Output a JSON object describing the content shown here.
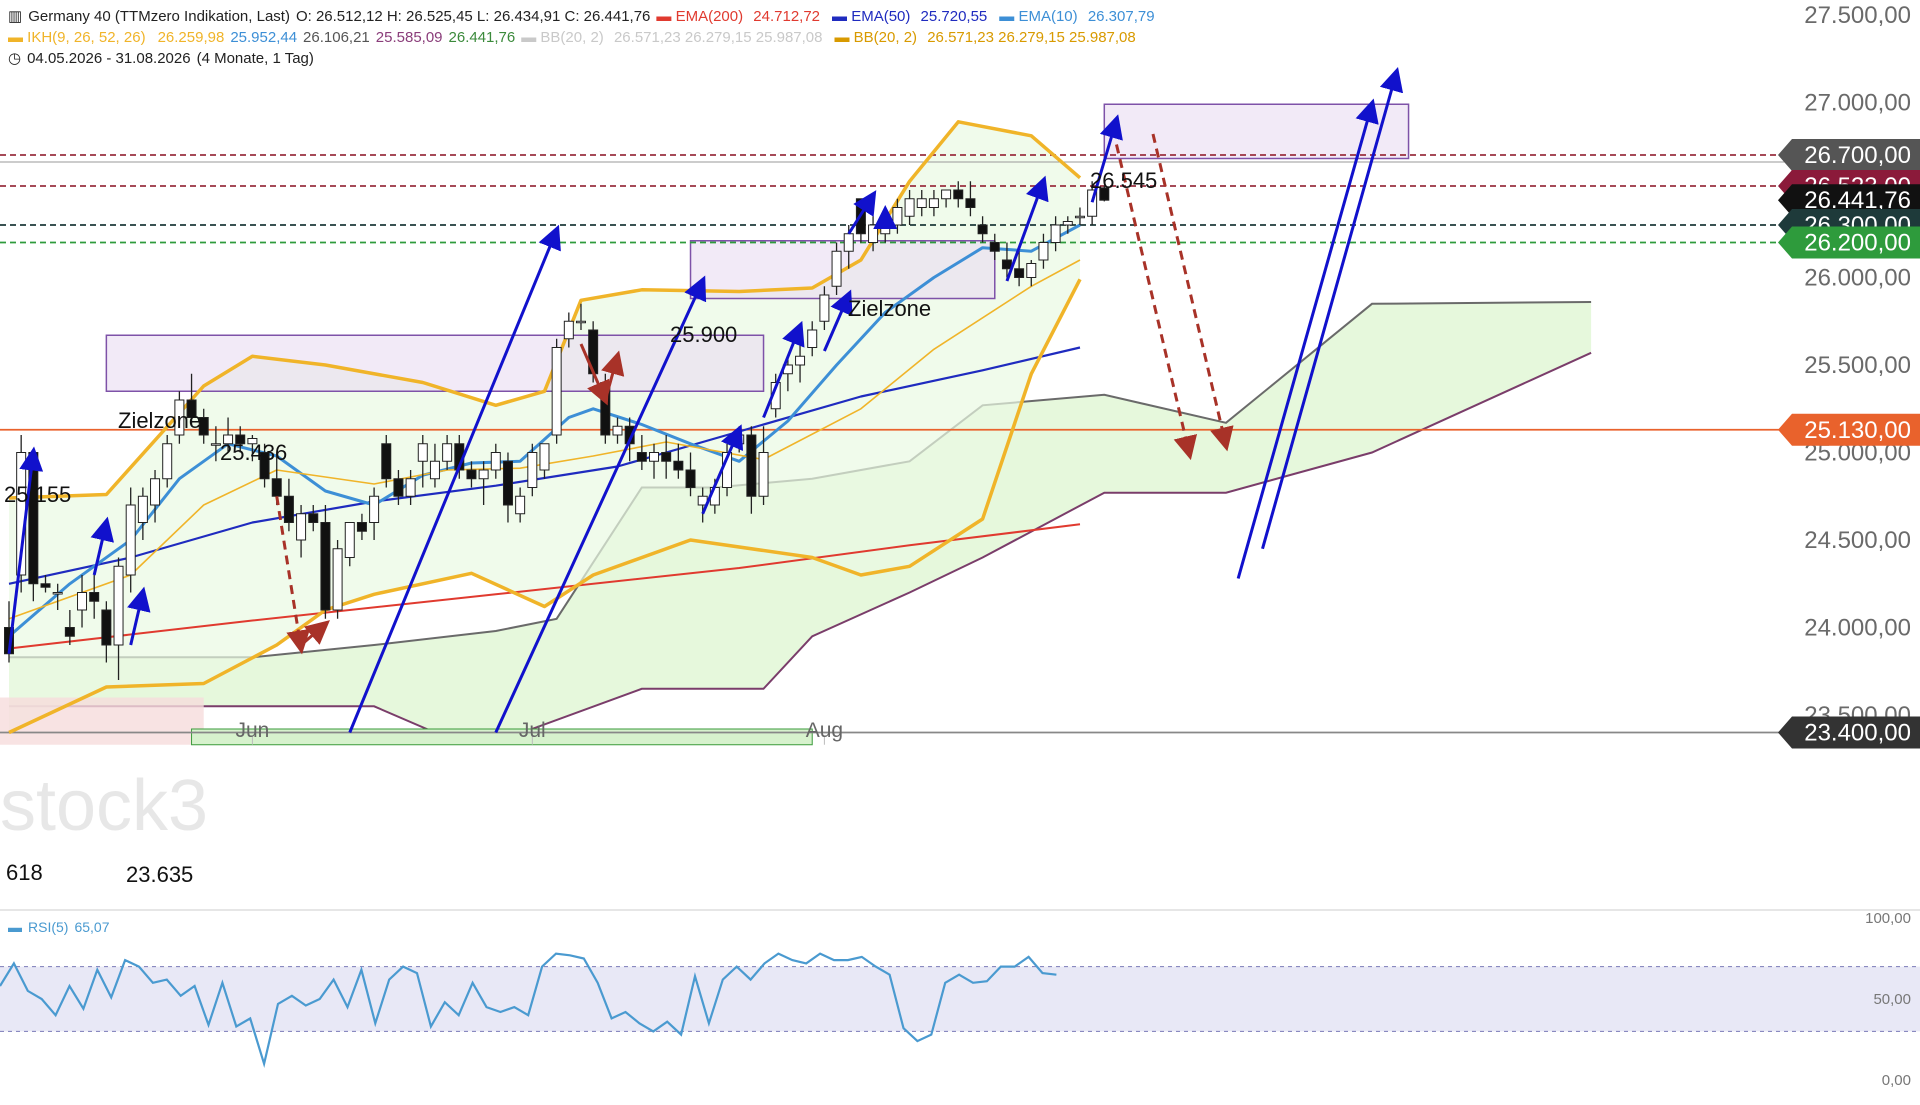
{
  "header": {
    "line1": {
      "symbol": "Germany 40 (TTMzero Indikation, Last)",
      "ohlc": "O: 26.512,12  H: 26.525,45  L: 26.434,91  C: 26.441,76",
      "ema200_label": "EMA(200)",
      "ema200_value": "24.712,72",
      "ema50_label": "EMA(50)",
      "ema50_value": "25.720,55",
      "ema10_label": "EMA(10)",
      "ema10_value": "26.307,79"
    },
    "line2": {
      "ikh_label": "IKH(9, 26, 52, 26)",
      "ikh_values": [
        "26.259,98",
        "25.952,44",
        "26.106,21",
        "25.585,09",
        "26.441,76"
      ],
      "bb_dim_label": "BB(20, 2)",
      "bb_dim_values": "26.571,23  26.279,15  25.987,08",
      "bb_label": "BB(20, 2)",
      "bb_values": "26.571,23  26.279,15  25.987,08"
    },
    "line3": {
      "range": "04.05.2026 - 31.08.2026",
      "period": "(4 Monate, 1 Tag)"
    }
  },
  "colors": {
    "ema200": "#e03a2f",
    "ema50": "#1f2bbf",
    "ema10": "#3d8fd6",
    "ikh": "#f0b429",
    "bb": "#f0b429",
    "cloud_fill": "#e6f8dc",
    "zone_fill": "#eadcf2",
    "zone_border": "#7e52a8",
    "arrow_blue": "#1111cc",
    "arrow_red": "#a83228",
    "rsi": "#4a9ad0"
  },
  "watermark": "stock3",
  "rsi": {
    "label": "RSI(5)",
    "value": "65,07"
  },
  "annotations": {
    "zone1": "Zielzone",
    "zone2": "Zielzone",
    "p25155": "25.155",
    "p25436": "25.436",
    "p25900": "25.900",
    "p26545": "26.545",
    "p23635": "23.635",
    "p618": "618"
  },
  "chart_data": {
    "type": "candlestick",
    "title": "Germany 40 (TTMzero Indikation, Last)",
    "period": "04.05.2026 - 31.08.2026",
    "x_ticks": [
      "Jun",
      "Jul",
      "Aug"
    ],
    "y_ticks": [
      "27.500,00",
      "27.000,00",
      "26.000,00",
      "25.500,00",
      "25.000,00",
      "24.500,00",
      "24.000,00",
      "23.500,00"
    ],
    "y_range": [
      23330,
      27600
    ],
    "price_labels": [
      {
        "label": "26.700,00",
        "value": 26700,
        "color": "#555555"
      },
      {
        "label": "26.523,00",
        "value": 26523,
        "color": "#8b1a3a"
      },
      {
        "label": "26.441,76",
        "value": 26441.76,
        "color": "#111111"
      },
      {
        "label": "26.300,00",
        "value": 26300,
        "color": "#1e3a3a"
      },
      {
        "label": "26.200,00",
        "value": 26200,
        "color": "#2e9b3c"
      },
      {
        "label": "25.130,00",
        "value": 25130,
        "color": "#e9622c"
      },
      {
        "label": "23.400,00",
        "value": 23400,
        "color": "#333333"
      }
    ],
    "candles": [
      [
        24000,
        24150,
        23800,
        23850
      ],
      [
        24300,
        25100,
        24200,
        25000
      ],
      [
        25000,
        25000,
        24150,
        24250
      ],
      [
        24250,
        24300,
        24200,
        24230
      ],
      [
        24200,
        24250,
        24100,
        24200
      ],
      [
        24000,
        24100,
        23900,
        23950
      ],
      [
        24100,
        24300,
        24000,
        24200
      ],
      [
        24200,
        24300,
        24050,
        24150
      ],
      [
        24100,
        24150,
        23800,
        23900
      ],
      [
        23900,
        24400,
        23700,
        24350
      ],
      [
        24300,
        24800,
        24200,
        24700
      ],
      [
        24600,
        24800,
        24500,
        24750
      ],
      [
        24700,
        24900,
        24600,
        24850
      ],
      [
        24850,
        25100,
        24800,
        25050
      ],
      [
        25100,
        25350,
        25050,
        25300
      ],
      [
        25300,
        25450,
        25150,
        25200
      ],
      [
        25200,
        25250,
        25050,
        25100
      ],
      [
        25050,
        25150,
        24950,
        25050
      ],
      [
        25050,
        25200,
        25000,
        25100
      ],
      [
        25100,
        25150,
        25000,
        25050
      ],
      [
        25050,
        25100,
        24950,
        25080
      ],
      [
        25000,
        25050,
        24800,
        24850
      ],
      [
        24850,
        25000,
        24700,
        24750
      ],
      [
        24750,
        24850,
        24550,
        24600
      ],
      [
        24500,
        24700,
        24400,
        24650
      ],
      [
        24650,
        24700,
        24550,
        24600
      ],
      [
        24600,
        24700,
        24050,
        24100
      ],
      [
        24100,
        24500,
        24050,
        24450
      ],
      [
        24400,
        24600,
        24350,
        24600
      ],
      [
        24600,
        24650,
        24500,
        24550
      ],
      [
        24600,
        24800,
        24500,
        24750
      ],
      [
        25050,
        25100,
        24800,
        24850
      ],
      [
        24850,
        24900,
        24700,
        24750
      ],
      [
        24750,
        24900,
        24700,
        24850
      ],
      [
        24950,
        25100,
        24800,
        25050
      ],
      [
        24850,
        25050,
        24800,
        24950
      ],
      [
        24950,
        25100,
        24900,
        25050
      ],
      [
        25050,
        25100,
        24850,
        24900
      ],
      [
        24900,
        24950,
        24800,
        24850
      ],
      [
        24850,
        24950,
        24700,
        24900
      ],
      [
        24900,
        25050,
        24850,
        25000
      ],
      [
        24950,
        25000,
        24600,
        24700
      ],
      [
        24650,
        24800,
        24600,
        24750
      ],
      [
        24800,
        25050,
        24750,
        25000
      ],
      [
        24900,
        25050,
        24850,
        25050
      ],
      [
        25100,
        25650,
        25050,
        25600
      ],
      [
        25650,
        25800,
        25600,
        25750
      ],
      [
        25750,
        25850,
        25700,
        25750
      ],
      [
        25700,
        25750,
        25400,
        25450
      ],
      [
        25400,
        25450,
        25050,
        25100
      ],
      [
        25100,
        25200,
        25050,
        25150
      ],
      [
        25150,
        25200,
        24950,
        25050
      ],
      [
        25000,
        25100,
        24900,
        24950
      ],
      [
        24950,
        25050,
        24850,
        25000
      ],
      [
        25000,
        25100,
        24850,
        24950
      ],
      [
        24950,
        25050,
        24850,
        24900
      ],
      [
        24900,
        25000,
        24750,
        24800
      ],
      [
        24700,
        24800,
        24600,
        24750
      ],
      [
        24700,
        24850,
        24650,
        24800
      ],
      [
        24800,
        25050,
        24750,
        25000
      ],
      [
        25050,
        25150,
        25000,
        25100
      ],
      [
        25100,
        25150,
        24650,
        24750
      ],
      [
        24750,
        25150,
        24700,
        25000
      ],
      [
        25250,
        25450,
        25200,
        25400
      ],
      [
        25450,
        25550,
        25350,
        25500
      ],
      [
        25500,
        25650,
        25400,
        25550
      ],
      [
        25600,
        25750,
        25550,
        25700
      ],
      [
        25750,
        25950,
        25700,
        25900
      ],
      [
        25950,
        26200,
        25900,
        26150
      ],
      [
        26150,
        26300,
        26050,
        26250
      ],
      [
        26450,
        26450,
        26200,
        26250
      ],
      [
        26200,
        26350,
        26150,
        26300
      ],
      [
        26250,
        26400,
        26200,
        26350
      ],
      [
        26300,
        26450,
        26250,
        26400
      ],
      [
        26350,
        26500,
        26300,
        26450
      ],
      [
        26400,
        26500,
        26350,
        26450
      ],
      [
        26400,
        26500,
        26350,
        26450
      ],
      [
        26450,
        26500,
        26400,
        26500
      ],
      [
        26500,
        26550,
        26400,
        26450
      ],
      [
        26450,
        26550,
        26350,
        26400
      ],
      [
        26300,
        26350,
        26200,
        26250
      ],
      [
        26200,
        26250,
        26100,
        26150
      ],
      [
        26100,
        26200,
        26000,
        26050
      ],
      [
        26050,
        26150,
        25950,
        26000
      ],
      [
        26000,
        26100,
        25950,
        26080
      ],
      [
        26100,
        26250,
        26050,
        26200
      ],
      [
        26200,
        26350,
        26150,
        26300
      ],
      [
        26300,
        26350,
        26250,
        26320
      ],
      [
        26350,
        26400,
        26300,
        26350
      ],
      [
        26350,
        26550,
        26300,
        26500
      ],
      [
        26512.12,
        26525.45,
        26434.91,
        26441.76
      ]
    ],
    "series": [
      {
        "name": "EMA(200)",
        "values": [
          [
            0,
            23880
          ],
          [
            20,
            24040
          ],
          [
            40,
            24190
          ],
          [
            60,
            24340
          ],
          [
            74,
            24470
          ],
          [
            88,
            24590
          ]
        ]
      },
      {
        "name": "EMA(50)",
        "values": [
          [
            0,
            24250
          ],
          [
            10,
            24400
          ],
          [
            20,
            24600
          ],
          [
            30,
            24720
          ],
          [
            40,
            24810
          ],
          [
            50,
            24920
          ],
          [
            60,
            25120
          ],
          [
            70,
            25320
          ],
          [
            80,
            25470
          ],
          [
            88,
            25600
          ]
        ]
      },
      {
        "name": "EMA(10)",
        "values": [
          [
            0,
            23950
          ],
          [
            5,
            24250
          ],
          [
            10,
            24500
          ],
          [
            14,
            24850
          ],
          [
            18,
            25050
          ],
          [
            22,
            24980
          ],
          [
            26,
            24780
          ],
          [
            30,
            24700
          ],
          [
            34,
            24870
          ],
          [
            38,
            24940
          ],
          [
            42,
            24950
          ],
          [
            46,
            25200
          ],
          [
            48,
            25250
          ],
          [
            52,
            25160
          ],
          [
            56,
            25050
          ],
          [
            60,
            24950
          ],
          [
            64,
            25180
          ],
          [
            68,
            25500
          ],
          [
            72,
            25800
          ],
          [
            76,
            26000
          ],
          [
            80,
            26170
          ],
          [
            84,
            26150
          ],
          [
            88,
            26300
          ]
        ]
      },
      {
        "name": "IKH(9, 26, 52, 26)",
        "values": [
          [
            0,
            24050
          ],
          [
            10,
            24300
          ],
          [
            16,
            24700
          ],
          [
            22,
            24900
          ],
          [
            30,
            24820
          ],
          [
            36,
            24900
          ],
          [
            42,
            24910
          ],
          [
            48,
            24980
          ],
          [
            54,
            25060
          ],
          [
            62,
            24960
          ],
          [
            70,
            25250
          ],
          [
            76,
            25590
          ],
          [
            84,
            25950
          ],
          [
            88,
            26100
          ]
        ]
      },
      {
        "name": "BB(20, 2) upper",
        "values": [
          [
            0,
            24740
          ],
          [
            8,
            24760
          ],
          [
            16,
            25380
          ],
          [
            20,
            25550
          ],
          [
            26,
            25500
          ],
          [
            34,
            25400
          ],
          [
            40,
            25270
          ],
          [
            44,
            25350
          ],
          [
            47,
            25870
          ],
          [
            52,
            25930
          ],
          [
            60,
            25920
          ],
          [
            66,
            25940
          ],
          [
            70,
            26100
          ],
          [
            74,
            26550
          ],
          [
            78,
            26890
          ],
          [
            84,
            26810
          ],
          [
            88,
            26570
          ]
        ]
      },
      {
        "name": "BB(20, 2) lower",
        "values": [
          [
            0,
            23400
          ],
          [
            8,
            23660
          ],
          [
            16,
            23680
          ],
          [
            22,
            23900
          ],
          [
            26,
            24100
          ],
          [
            30,
            24190
          ],
          [
            38,
            24310
          ],
          [
            44,
            24120
          ],
          [
            48,
            24300
          ],
          [
            56,
            24500
          ],
          [
            66,
            24400
          ],
          [
            70,
            24300
          ],
          [
            74,
            24350
          ],
          [
            80,
            24620
          ],
          [
            84,
            25450
          ],
          [
            88,
            25990
          ]
        ]
      }
    ],
    "rsi": {
      "name": "RSI(5)",
      "levels": [
        30,
        70
      ],
      "range": [
        0,
        100
      ],
      "y_ticks": [
        "100,00",
        "50,00",
        "0,00"
      ],
      "values": [
        58,
        72,
        55,
        50,
        40,
        58,
        44,
        68,
        51,
        74,
        70,
        60,
        62,
        52,
        58,
        34,
        60,
        33,
        38,
        10,
        47,
        52,
        46,
        50,
        62,
        45,
        68,
        35,
        62,
        70,
        66,
        33,
        48,
        40,
        60,
        45,
        42,
        45,
        40,
        70,
        78,
        77,
        75,
        60,
        38,
        42,
        35,
        30,
        36,
        28,
        64,
        35,
        62,
        70,
        62,
        72,
        78,
        74,
        72,
        78,
        74,
        74,
        76,
        70,
        65,
        32,
        24,
        28,
        60,
        65,
        60,
        61,
        70,
        70,
        76,
        66,
        65
      ]
    }
  }
}
